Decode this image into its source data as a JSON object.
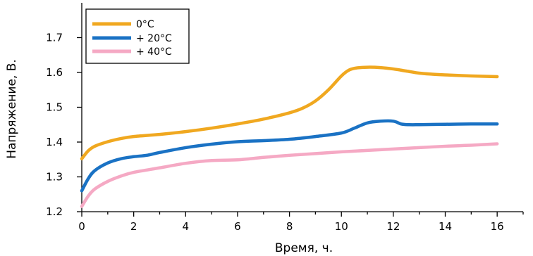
{
  "chart_data": {
    "type": "line",
    "title": "",
    "xlabel": "Время, ч.",
    "ylabel": "Напряжение, В.",
    "xlim": [
      0,
      17
    ],
    "ylim": [
      1.2,
      1.8
    ],
    "xticks": [
      0,
      2,
      4,
      6,
      8,
      10,
      12,
      14,
      16
    ],
    "yticks": [
      1.2,
      1.3,
      1.4,
      1.5,
      1.6,
      1.7
    ],
    "xtick_labels": [
      "0",
      "2",
      "4",
      "6",
      "8",
      "10",
      "12",
      "14",
      "16"
    ],
    "ytick_labels": [
      "1.2",
      "1.3",
      "1.4",
      "1.5",
      "1.6",
      "1.7"
    ],
    "grid": false,
    "legend": {
      "placement": "top-left"
    },
    "series": [
      {
        "name": "0°C",
        "color": "#f0a820",
        "x": [
          0,
          0.25,
          0.5,
          1,
          1.5,
          2,
          3,
          4,
          5,
          6,
          7,
          8,
          8.5,
          9,
          9.5,
          10,
          10.3,
          10.6,
          11,
          11.5,
          12,
          12.5,
          13,
          13.5,
          14,
          15,
          16
        ],
        "y": [
          1.352,
          1.375,
          1.388,
          1.401,
          1.41,
          1.416,
          1.422,
          1.43,
          1.44,
          1.452,
          1.466,
          1.484,
          1.497,
          1.518,
          1.55,
          1.59,
          1.607,
          1.613,
          1.615,
          1.614,
          1.61,
          1.604,
          1.598,
          1.595,
          1.593,
          1.59,
          1.588
        ]
      },
      {
        "name": "+ 20°C",
        "color": "#1a72c4",
        "x": [
          0,
          0.25,
          0.5,
          1,
          1.5,
          2,
          2.5,
          3,
          4,
          5,
          6,
          7,
          8,
          9,
          10,
          10.5,
          11,
          11.5,
          12,
          12.3,
          12.6,
          13,
          14,
          15,
          16
        ],
        "y": [
          1.26,
          1.295,
          1.318,
          1.34,
          1.352,
          1.358,
          1.362,
          1.37,
          1.384,
          1.394,
          1.401,
          1.404,
          1.408,
          1.416,
          1.426,
          1.44,
          1.455,
          1.46,
          1.46,
          1.452,
          1.45,
          1.45,
          1.451,
          1.452,
          1.452
        ]
      },
      {
        "name": "+ 40°C",
        "color": "#f5a9c4",
        "x": [
          0,
          0.25,
          0.5,
          1,
          1.5,
          2,
          3,
          4,
          5,
          6,
          7,
          8,
          9,
          10,
          11,
          12,
          13,
          14,
          15,
          16
        ],
        "y": [
          1.215,
          1.245,
          1.265,
          1.287,
          1.302,
          1.313,
          1.326,
          1.339,
          1.347,
          1.349,
          1.356,
          1.362,
          1.367,
          1.372,
          1.376,
          1.38,
          1.384,
          1.388,
          1.391,
          1.395
        ]
      }
    ]
  }
}
